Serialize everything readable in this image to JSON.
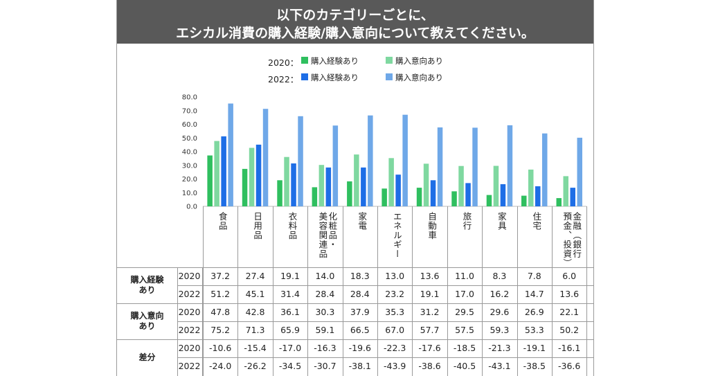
{
  "title": {
    "line1": "以下のカテゴリーごとに、",
    "line2": "エシカル消費の購入経験/購入意向について教えてください。"
  },
  "legend": {
    "rows": [
      {
        "year": "2020：",
        "items": [
          {
            "label": "購入経験あり",
            "color": "#2fbf5f"
          },
          {
            "label": "購入意向あり",
            "color": "#7fd8a0"
          }
        ]
      },
      {
        "year": "2022：",
        "items": [
          {
            "label": "購入経験あり",
            "color": "#1e6ee6"
          },
          {
            "label": "購入意向あり",
            "color": "#6fa8e8"
          }
        ]
      }
    ]
  },
  "chart_data": {
    "type": "bar",
    "categories": [
      "食品",
      "日用品",
      "衣料品",
      "化粧品・美容関連品",
      "家電",
      "エネルギー",
      "自動車",
      "旅行",
      "家具",
      "住宅",
      "金融（銀行預金、投資）"
    ],
    "category_labels": [
      [
        "食品"
      ],
      [
        "日用品"
      ],
      [
        "衣料品"
      ],
      [
        "化粧品・",
        "美容関連品"
      ],
      [
        "家電"
      ],
      [
        "エネルギー"
      ],
      [
        "自動車"
      ],
      [
        "旅行"
      ],
      [
        "家具"
      ],
      [
        "住宅"
      ],
      [
        "金融（銀行",
        "預金、投資）"
      ]
    ],
    "series": [
      {
        "name": "2020 購入経験あり",
        "color": "#2fbf5f",
        "values": [
          37.2,
          27.4,
          19.1,
          14.0,
          18.3,
          13.0,
          13.6,
          11.0,
          8.3,
          7.8,
          6.0
        ]
      },
      {
        "name": "2020 購入意向あり",
        "color": "#7fd8a0",
        "values": [
          47.8,
          42.8,
          36.1,
          30.3,
          37.9,
          35.3,
          31.2,
          29.5,
          29.6,
          26.9,
          22.1
        ]
      },
      {
        "name": "2022 購入経験あり",
        "color": "#1e6ee6",
        "values": [
          51.2,
          45.1,
          31.4,
          28.4,
          28.4,
          23.2,
          19.1,
          17.0,
          16.2,
          14.7,
          13.6
        ]
      },
      {
        "name": "2022 購入意向あり",
        "color": "#6fa8e8",
        "values": [
          75.2,
          71.3,
          65.9,
          59.1,
          66.5,
          67.0,
          57.7,
          57.5,
          59.3,
          53.3,
          50.2
        ]
      }
    ],
    "yticks": [
      "80.0",
      "70.0",
      "60.0",
      "50.0",
      "40.0",
      "30.0",
      "20.0",
      "10.0",
      "0.0"
    ],
    "ylim": [
      0,
      80
    ],
    "grid": false
  },
  "table": {
    "groups": [
      {
        "label": [
          "購入経験",
          "あり"
        ],
        "rows": [
          {
            "year": "2020",
            "values": [
              "37.2",
              "27.4",
              "19.1",
              "14.0",
              "18.3",
              "13.0",
              "13.6",
              "11.0",
              "8.3",
              "7.8",
              "6.0"
            ]
          },
          {
            "year": "2022",
            "values": [
              "51.2",
              "45.1",
              "31.4",
              "28.4",
              "28.4",
              "23.2",
              "19.1",
              "17.0",
              "16.2",
              "14.7",
              "13.6"
            ]
          }
        ]
      },
      {
        "label": [
          "購入意向",
          "あり"
        ],
        "rows": [
          {
            "year": "2020",
            "values": [
              "47.8",
              "42.8",
              "36.1",
              "30.3",
              "37.9",
              "35.3",
              "31.2",
              "29.5",
              "29.6",
              "26.9",
              "22.1"
            ]
          },
          {
            "year": "2022",
            "values": [
              "75.2",
              "71.3",
              "65.9",
              "59.1",
              "66.5",
              "67.0",
              "57.7",
              "57.5",
              "59.3",
              "53.3",
              "50.2"
            ]
          }
        ]
      },
      {
        "label": [
          "差分"
        ],
        "rows": [
          {
            "year": "2020",
            "values": [
              "-10.6",
              "-15.4",
              "-17.0",
              "-16.3",
              "-19.6",
              "-22.3",
              "-17.6",
              "-18.5",
              "-21.3",
              "-19.1",
              "-16.1"
            ]
          },
          {
            "year": "2022",
            "values": [
              "-24.0",
              "-26.2",
              "-34.5",
              "-30.7",
              "-38.1",
              "-43.9",
              "-38.6",
              "-40.5",
              "-43.1",
              "-38.5",
              "-36.6"
            ]
          }
        ]
      }
    ]
  }
}
